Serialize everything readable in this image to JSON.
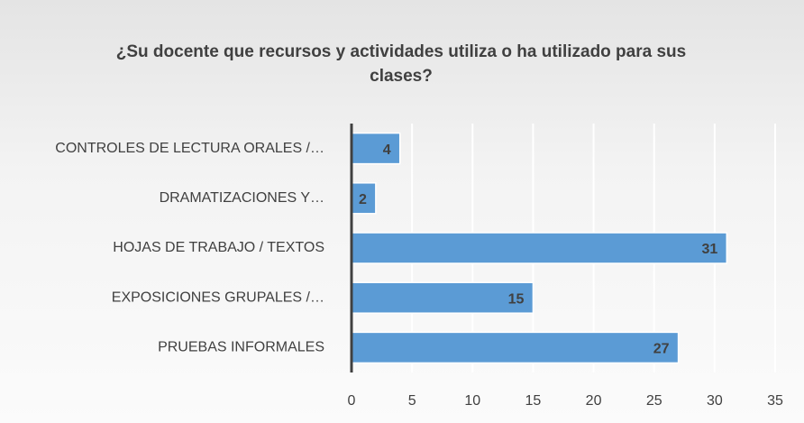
{
  "chart_data": {
    "type": "bar",
    "orientation": "horizontal",
    "title": "¿Su docente que recursos y actividades utiliza o ha utilizado para sus clases?",
    "categories": [
      "CONTROLES DE LECTURA ORALES /…",
      "DRAMATIZACIONES Y…",
      "HOJAS DE TRABAJO / TEXTOS",
      "EXPOSICIONES GRUPALES /…",
      "PRUEBAS INFORMALES"
    ],
    "values": [
      4,
      2,
      31,
      15,
      27
    ],
    "color": "#5b9bd5",
    "xlim": [
      0,
      35
    ],
    "xticks": [
      0,
      5,
      10,
      15,
      20,
      25,
      30,
      35
    ],
    "grid": true
  }
}
